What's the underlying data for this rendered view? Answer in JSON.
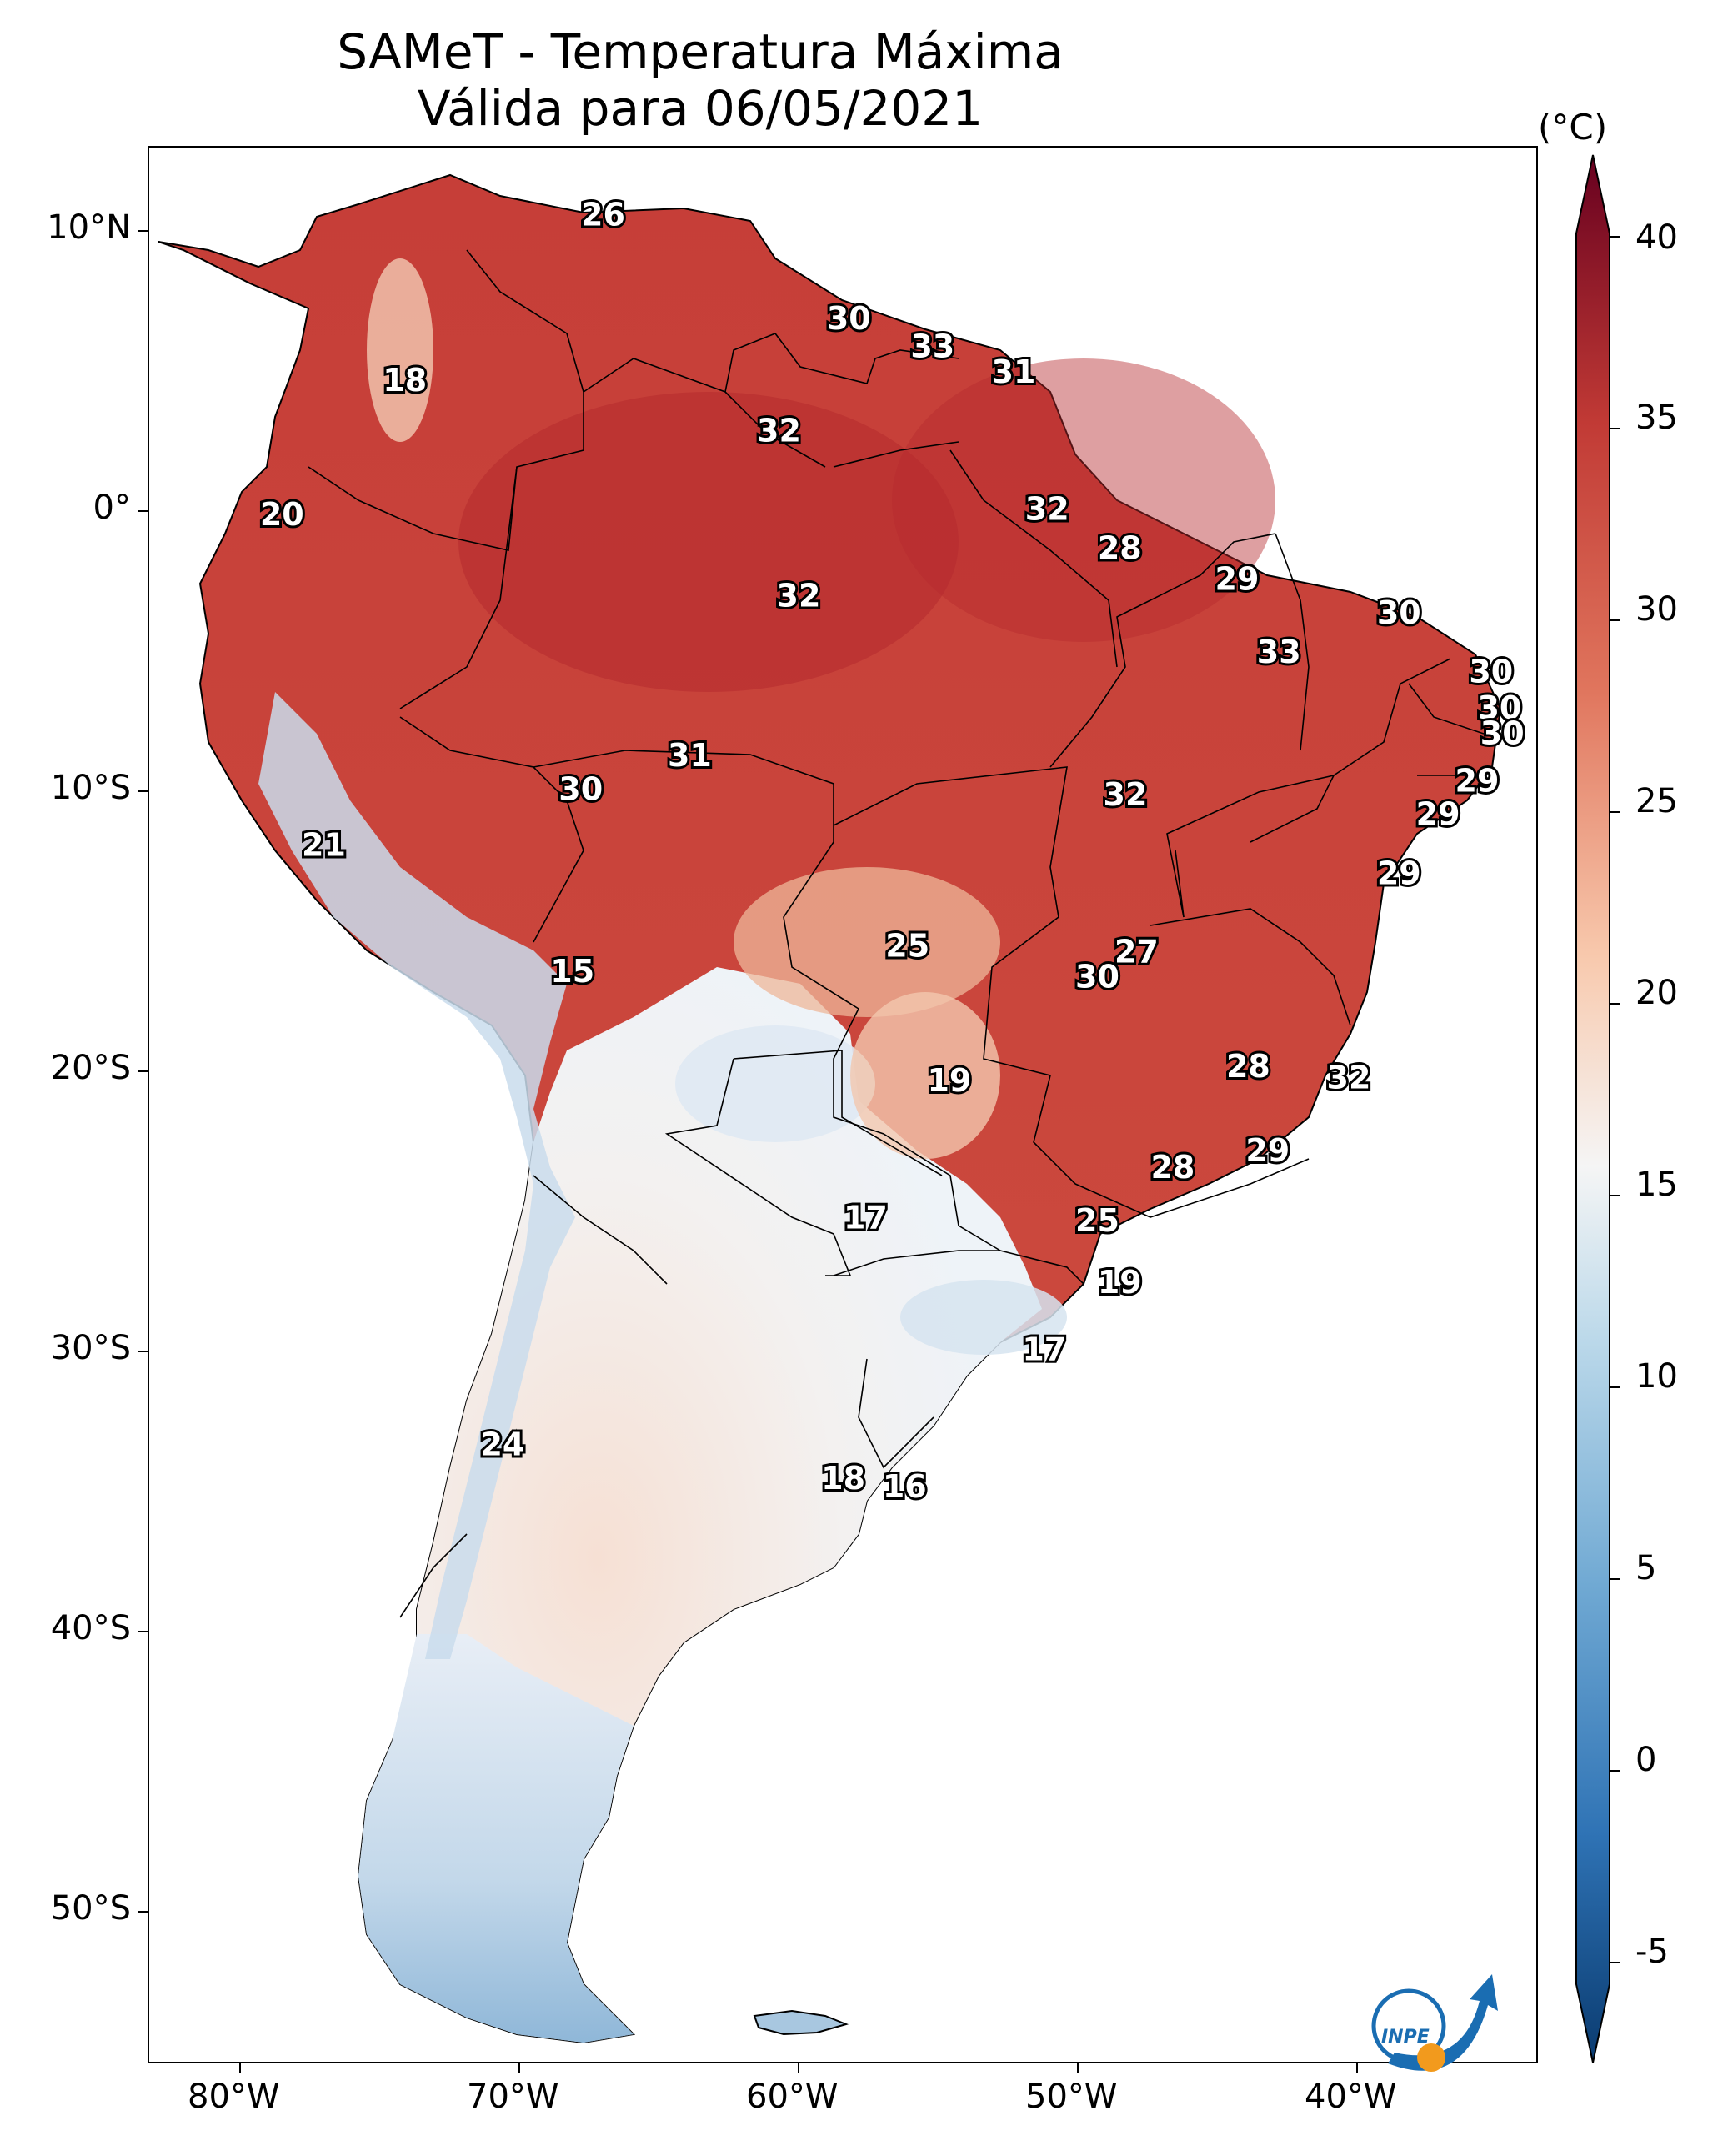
{
  "title": {
    "line1": "SAMeT - Temperatura Máxima",
    "line2": "Válida para 06/05/2021"
  },
  "colorbar": {
    "unit": "(°C)",
    "ticks": [
      "40",
      "35",
      "30",
      "25",
      "20",
      "15",
      "10",
      "5",
      "0",
      "-5"
    ],
    "range": [
      -5,
      40
    ],
    "colors": [
      "#0a3b70",
      "#2f73b5",
      "#70a9d3",
      "#bcd9ea",
      "#f5f5f5",
      "#f8c9ad",
      "#e0755d",
      "#c13a35",
      "#67001f"
    ]
  },
  "axes": {
    "lat_labels": [
      "10°N",
      "0°",
      "10°S",
      "20°S",
      "30°S",
      "40°S",
      "50°S"
    ],
    "lon_labels": [
      "80°W",
      "70°W",
      "60°W",
      "50°W",
      "40°W"
    ]
  },
  "city_values": [
    {
      "value": "26",
      "lon": -67.0,
      "lat": 10.5
    },
    {
      "value": "18",
      "lon": -74.1,
      "lat": 4.6
    },
    {
      "value": "20",
      "lon": -78.5,
      "lat": -0.2
    },
    {
      "value": "30",
      "lon": -58.2,
      "lat": 6.8
    },
    {
      "value": "33",
      "lon": -55.2,
      "lat": 5.8
    },
    {
      "value": "31",
      "lon": -52.3,
      "lat": 4.9
    },
    {
      "value": "32",
      "lon": -60.7,
      "lat": 2.8
    },
    {
      "value": "32",
      "lon": -51.1,
      "lat": 0.0
    },
    {
      "value": "28",
      "lon": -48.5,
      "lat": -1.4
    },
    {
      "value": "29",
      "lon": -44.3,
      "lat": -2.5
    },
    {
      "value": "30",
      "lon": -38.5,
      "lat": -3.7
    },
    {
      "value": "33",
      "lon": -42.8,
      "lat": -5.1
    },
    {
      "value": "30",
      "lon": -35.2,
      "lat": -5.8
    },
    {
      "value": "30",
      "lon": -34.9,
      "lat": -7.1
    },
    {
      "value": "30",
      "lon": -34.8,
      "lat": -8.0
    },
    {
      "value": "32",
      "lon": -60.0,
      "lat": -3.1
    },
    {
      "value": "31",
      "lon": -63.9,
      "lat": -8.8
    },
    {
      "value": "30",
      "lon": -67.8,
      "lat": -10.0
    },
    {
      "value": "32",
      "lon": -48.3,
      "lat": -10.2
    },
    {
      "value": "29",
      "lon": -35.7,
      "lat": -9.7
    },
    {
      "value": "29",
      "lon": -37.1,
      "lat": -10.9
    },
    {
      "value": "29",
      "lon": -38.5,
      "lat": -13.0
    },
    {
      "value": "21",
      "lon": -77.0,
      "lat": -12.0
    },
    {
      "value": "15",
      "lon": -68.1,
      "lat": -16.5
    },
    {
      "value": "25",
      "lon": -56.1,
      "lat": -15.6
    },
    {
      "value": "27",
      "lon": -47.9,
      "lat": -15.8
    },
    {
      "value": "30",
      "lon": -49.3,
      "lat": -16.7
    },
    {
      "value": "19",
      "lon": -54.6,
      "lat": -20.4
    },
    {
      "value": "28",
      "lon": -43.9,
      "lat": -19.9
    },
    {
      "value": "32",
      "lon": -40.3,
      "lat": -20.3
    },
    {
      "value": "29",
      "lon": -43.2,
      "lat": -22.9
    },
    {
      "value": "28",
      "lon": -46.6,
      "lat": -23.5
    },
    {
      "value": "17",
      "lon": -57.6,
      "lat": -25.3
    },
    {
      "value": "25",
      "lon": -49.3,
      "lat": -25.4
    },
    {
      "value": "19",
      "lon": -48.5,
      "lat": -27.6
    },
    {
      "value": "17",
      "lon": -51.2,
      "lat": -30.0
    },
    {
      "value": "24",
      "lon": -70.6,
      "lat": -33.4
    },
    {
      "value": "18",
      "lon": -58.4,
      "lat": -34.6
    },
    {
      "value": "16",
      "lon": -56.2,
      "lat": -34.9
    }
  ],
  "logo": {
    "text": "INPE"
  }
}
